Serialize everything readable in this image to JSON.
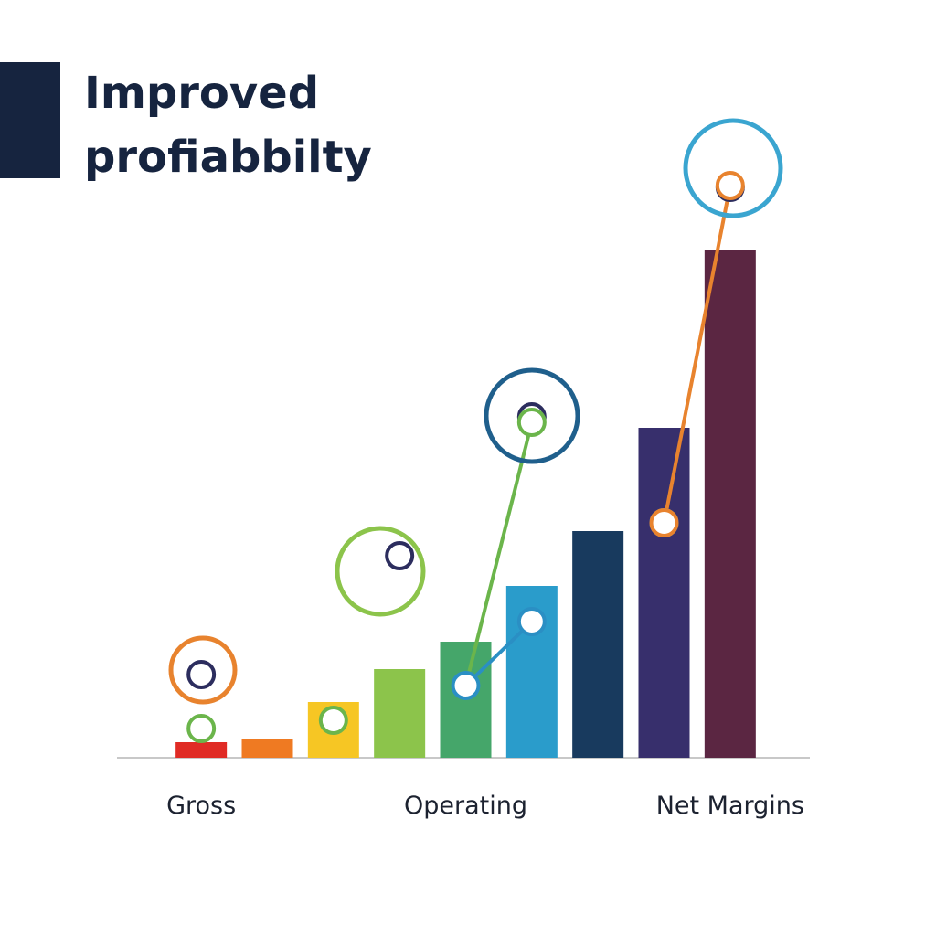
{
  "chart_data": {
    "type": "bar",
    "title": [
      "Improved",
      "profiabbilty"
    ],
    "categories": [
      "Gross",
      null,
      null,
      null,
      "Operating",
      null,
      null,
      null,
      "Net Margins"
    ],
    "values": [
      17,
      21,
      61,
      97,
      127,
      188,
      248,
      361,
      556
    ],
    "colors": [
      "#e02b25",
      "#ef7a22",
      "#f6c624",
      "#8cc44b",
      "#45a66a",
      "#2a9ccb",
      "#183a5e",
      "#372f6c",
      "#5b2642"
    ],
    "ylim": [
      0,
      700
    ],
    "lines": [
      {
        "color": "#2c2d5e",
        "values": [
          91,
          null,
          null,
          221,
          null,
          373,
          null,
          null,
          624
        ]
      },
      {
        "color": "#6bb54b",
        "values": [
          32,
          null,
          41,
          null,
          79,
          367,
          null,
          null,
          null
        ]
      },
      {
        "color": "#2a8fc4",
        "values": [
          null,
          null,
          null,
          null,
          79,
          149,
          null,
          257,
          null
        ]
      },
      {
        "color": "#e8832e",
        "values": [
          null,
          null,
          null,
          null,
          null,
          null,
          null,
          257,
          626
        ]
      }
    ]
  }
}
